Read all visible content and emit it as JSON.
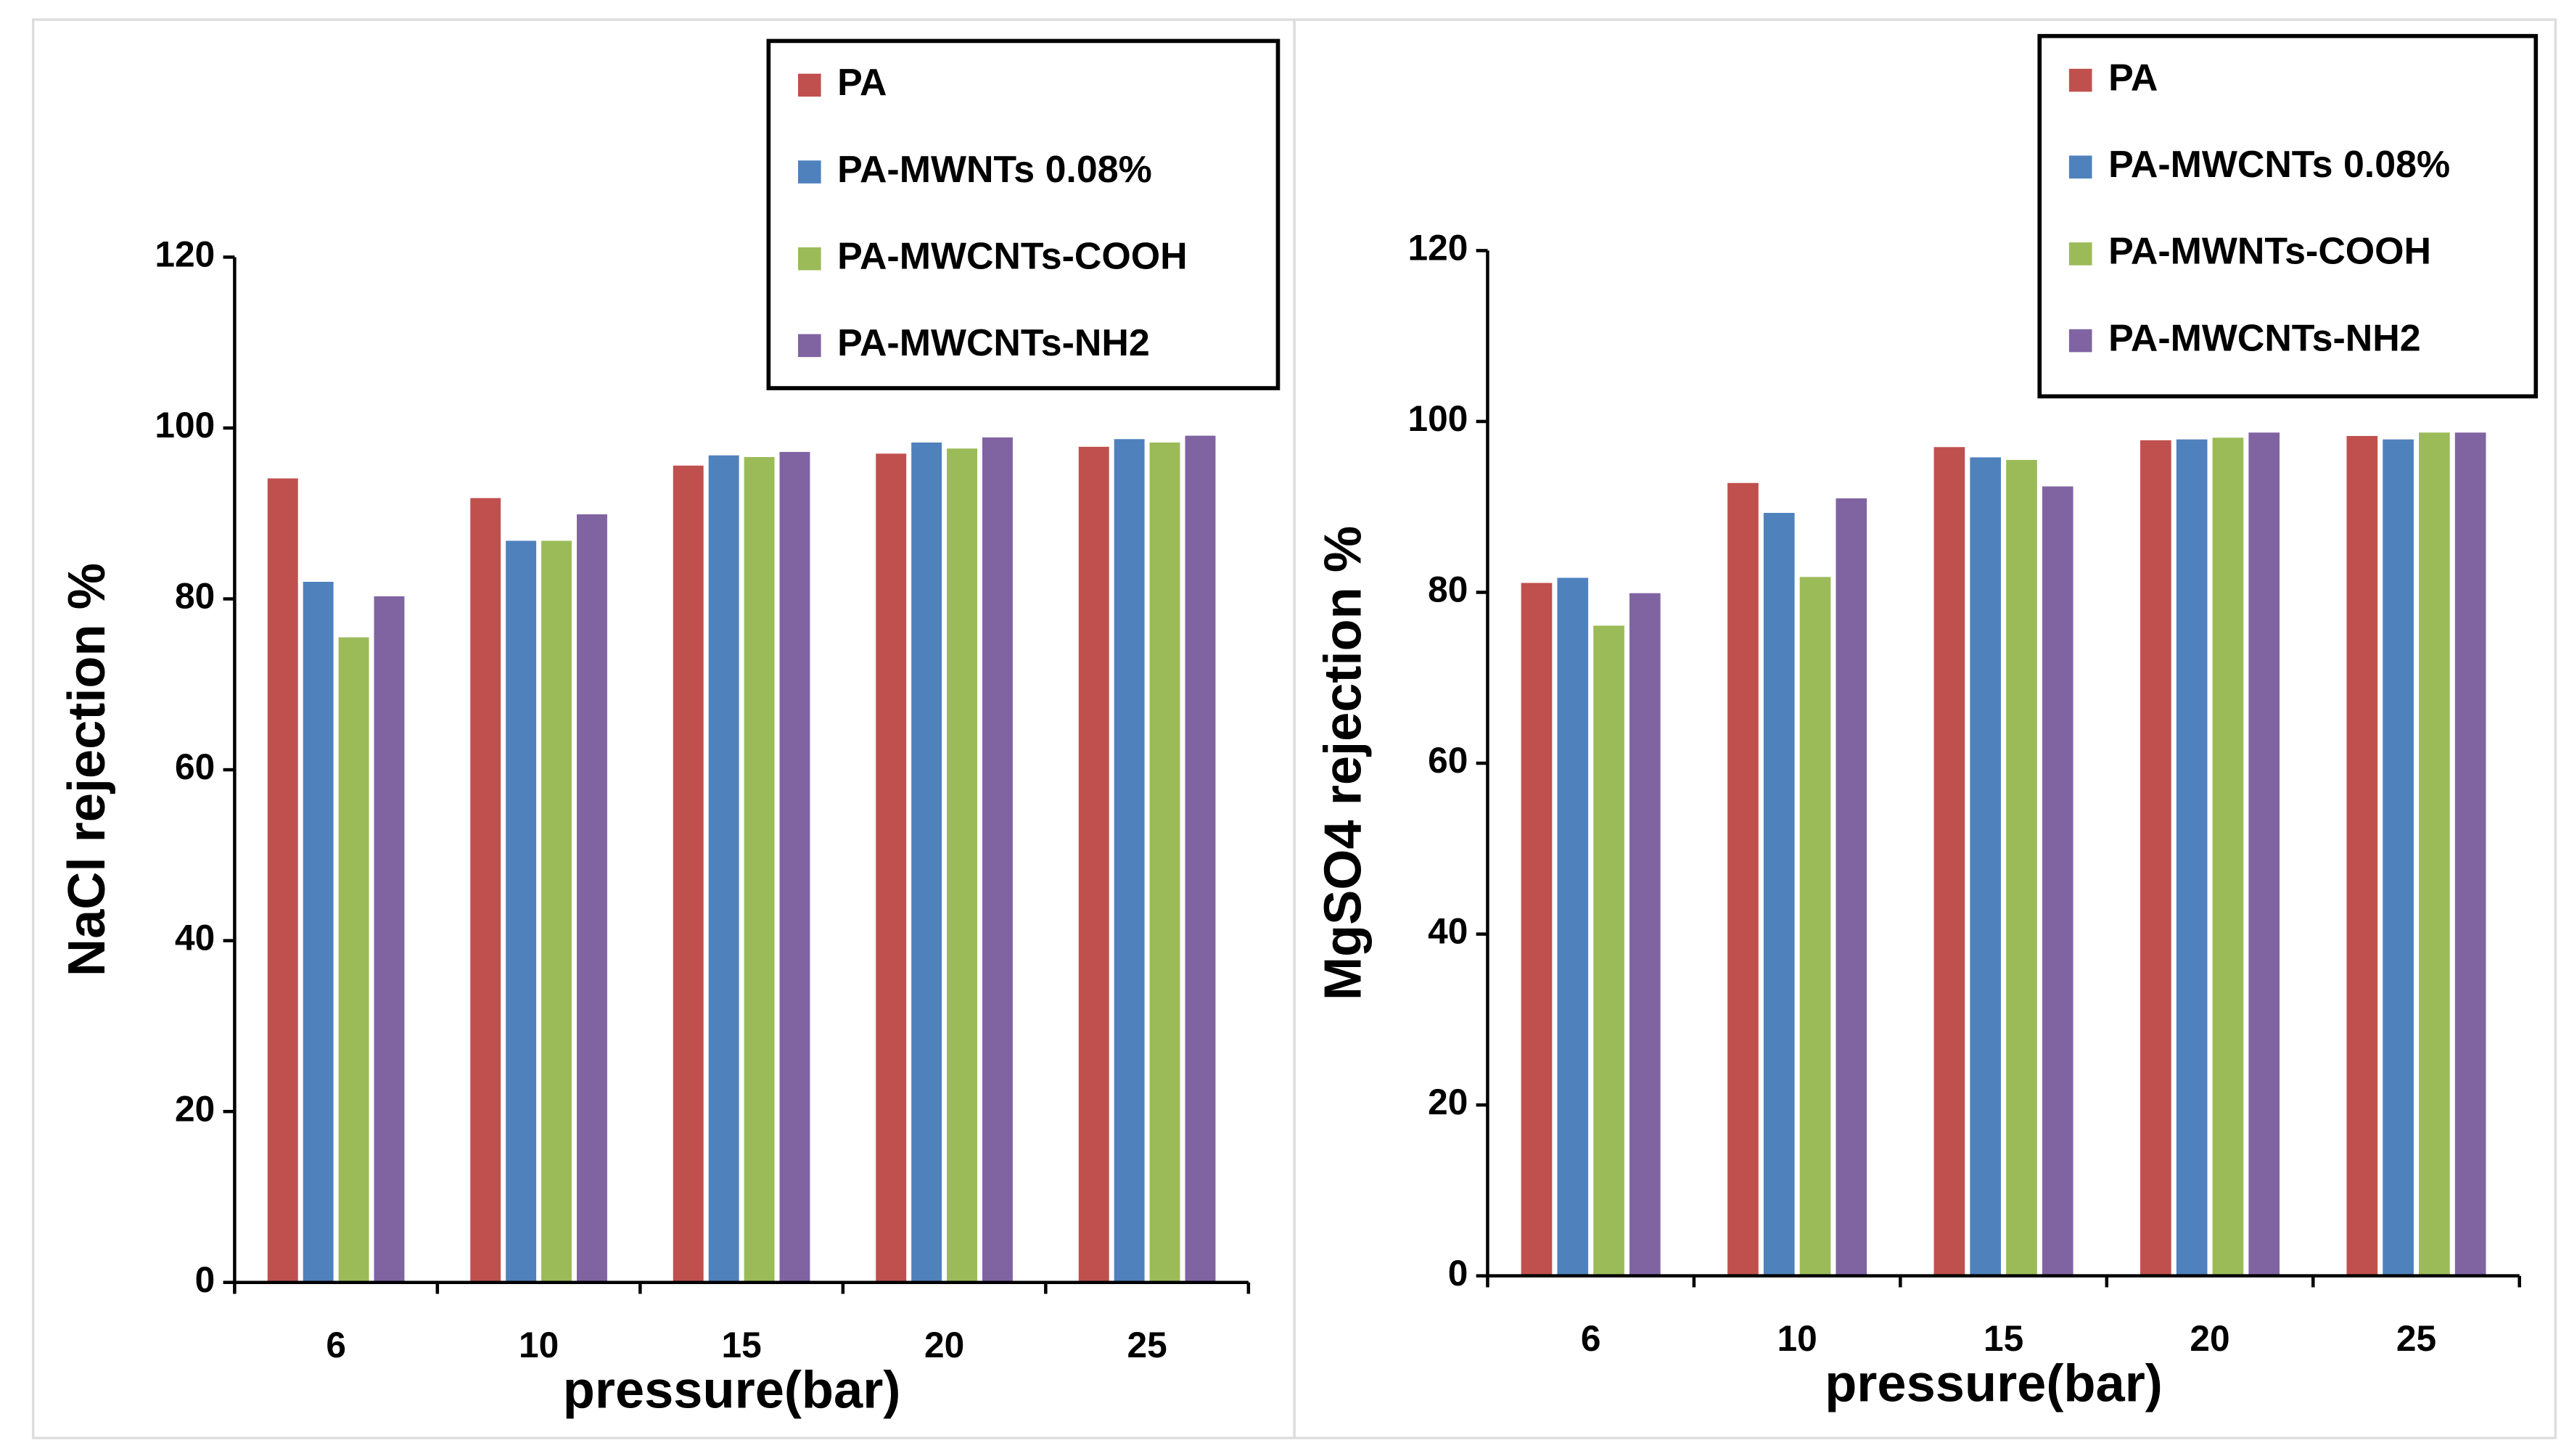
{
  "chart_data": [
    {
      "type": "bar",
      "y_label": "NaCl rejection %",
      "x_label": "pressure(bar)",
      "categories": [
        "6",
        "10",
        "15",
        "20",
        "25"
      ],
      "series": [
        {
          "name": "PA",
          "color": "#c0504d",
          "values": [
            94.1,
            91.8,
            95.6,
            97.0,
            97.8
          ]
        },
        {
          "name": "PA-MWNTs 0.08%",
          "color": "#4f81bd",
          "values": [
            82.0,
            86.8,
            96.8,
            98.3,
            98.7
          ]
        },
        {
          "name": "PA-MWCNTs-COOH",
          "color": "#9bbb59",
          "values": [
            75.5,
            86.8,
            96.6,
            97.6,
            98.3
          ]
        },
        {
          "name": "PA-MWCNTs-NH2",
          "color": "#8064a2",
          "values": [
            80.3,
            89.9,
            97.2,
            98.9,
            99.1
          ]
        }
      ],
      "ylim": [
        0,
        120
      ],
      "yticks": [
        0,
        20,
        40,
        60,
        80,
        100,
        120
      ]
    },
    {
      "type": "bar",
      "y_label": "MgSO4 rejection %",
      "x_label": "pressure(bar)",
      "categories": [
        "6",
        "10",
        "15",
        "20",
        "25"
      ],
      "series": [
        {
          "name": "PA",
          "color": "#c0504d",
          "values": [
            81.1,
            92.8,
            97.0,
            97.8,
            98.3
          ]
        },
        {
          "name": "PA-MWCNTs 0.08%",
          "color": "#4f81bd",
          "values": [
            81.7,
            89.3,
            95.8,
            97.9,
            97.9
          ]
        },
        {
          "name": "PA-MWNTs-COOH",
          "color": "#9bbb59",
          "values": [
            76.1,
            81.8,
            95.5,
            98.1,
            98.7
          ]
        },
        {
          "name": "PA-MWCNTs-NH2",
          "color": "#8064a2",
          "values": [
            79.9,
            91.0,
            92.4,
            98.7,
            98.7
          ]
        }
      ],
      "ylim": [
        0,
        120
      ],
      "yticks": [
        0,
        20,
        40,
        60,
        80,
        100,
        120
      ]
    }
  ]
}
